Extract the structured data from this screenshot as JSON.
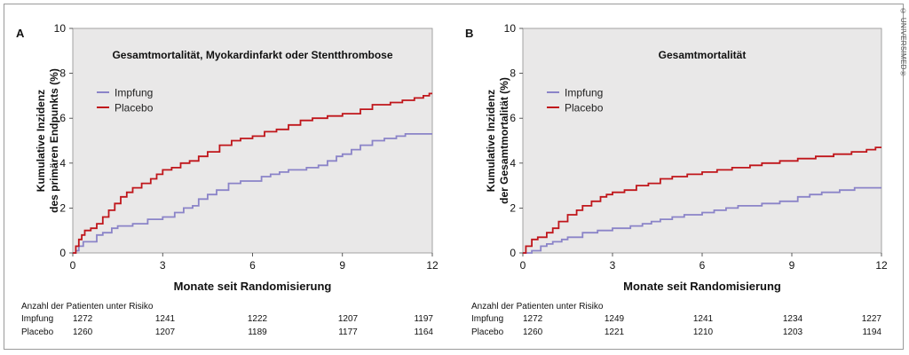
{
  "copyright": "© UNIVERSIMED®",
  "colors": {
    "impfung": "#8b84c8",
    "placebo": "#c0161b",
    "plot_bg": "#e9e8e8"
  },
  "chart_data": [
    {
      "type": "line",
      "panel": "A",
      "title": "Gesamtmortalität, Myokardinfarkt oder Stentthrombose",
      "xlabel": "Monate seit Randomisierung",
      "ylabel": [
        "Kumulative Inzidenz",
        "des primären Endpunkts (%)"
      ],
      "xlim": [
        0,
        12
      ],
      "ylim": [
        0,
        10
      ],
      "xticks": [
        0,
        3,
        6,
        9,
        12
      ],
      "yticks": [
        0,
        2,
        4,
        6,
        8,
        10
      ],
      "grid": false,
      "legend_position": "upper-left",
      "series": [
        {
          "name": "Impfung",
          "color": "#8b84c8",
          "points": [
            [
              0,
              0
            ],
            [
              0.1,
              0.1
            ],
            [
              0.2,
              0.3
            ],
            [
              0.35,
              0.5
            ],
            [
              0.8,
              0.8
            ],
            [
              1.0,
              0.9
            ],
            [
              1.3,
              1.1
            ],
            [
              1.5,
              1.2
            ],
            [
              2.0,
              1.3
            ],
            [
              2.5,
              1.5
            ],
            [
              3.0,
              1.6
            ],
            [
              3.4,
              1.8
            ],
            [
              3.7,
              2.0
            ],
            [
              4.0,
              2.1
            ],
            [
              4.2,
              2.4
            ],
            [
              4.5,
              2.6
            ],
            [
              4.8,
              2.8
            ],
            [
              5.2,
              3.1
            ],
            [
              5.6,
              3.2
            ],
            [
              6.0,
              3.2
            ],
            [
              6.3,
              3.4
            ],
            [
              6.6,
              3.5
            ],
            [
              6.9,
              3.6
            ],
            [
              7.2,
              3.7
            ],
            [
              7.8,
              3.8
            ],
            [
              8.2,
              3.9
            ],
            [
              8.5,
              4.1
            ],
            [
              8.8,
              4.3
            ],
            [
              9.0,
              4.4
            ],
            [
              9.3,
              4.6
            ],
            [
              9.6,
              4.8
            ],
            [
              10.0,
              5.0
            ],
            [
              10.4,
              5.1
            ],
            [
              10.8,
              5.2
            ],
            [
              11.1,
              5.3
            ],
            [
              12.0,
              5.3
            ]
          ]
        },
        {
          "name": "Placebo",
          "color": "#c0161b",
          "points": [
            [
              0,
              0
            ],
            [
              0.1,
              0.3
            ],
            [
              0.2,
              0.6
            ],
            [
              0.3,
              0.8
            ],
            [
              0.4,
              1.0
            ],
            [
              0.6,
              1.1
            ],
            [
              0.8,
              1.3
            ],
            [
              1.0,
              1.6
            ],
            [
              1.2,
              1.9
            ],
            [
              1.4,
              2.2
            ],
            [
              1.6,
              2.5
            ],
            [
              1.8,
              2.7
            ],
            [
              2.0,
              2.9
            ],
            [
              2.3,
              3.1
            ],
            [
              2.6,
              3.3
            ],
            [
              2.8,
              3.5
            ],
            [
              3.0,
              3.7
            ],
            [
              3.3,
              3.8
            ],
            [
              3.6,
              4.0
            ],
            [
              3.9,
              4.1
            ],
            [
              4.2,
              4.3
            ],
            [
              4.5,
              4.5
            ],
            [
              4.9,
              4.8
            ],
            [
              5.3,
              5.0
            ],
            [
              5.6,
              5.1
            ],
            [
              6.0,
              5.2
            ],
            [
              6.4,
              5.4
            ],
            [
              6.8,
              5.5
            ],
            [
              7.2,
              5.7
            ],
            [
              7.6,
              5.9
            ],
            [
              8.0,
              6.0
            ],
            [
              8.5,
              6.1
            ],
            [
              9.0,
              6.2
            ],
            [
              9.6,
              6.4
            ],
            [
              10.0,
              6.6
            ],
            [
              10.6,
              6.7
            ],
            [
              11.0,
              6.8
            ],
            [
              11.4,
              6.9
            ],
            [
              11.7,
              7.0
            ],
            [
              11.9,
              7.1
            ],
            [
              12.0,
              7.1
            ]
          ]
        }
      ],
      "risk_table": {
        "header": "Anzahl der Patienten unter Risiko",
        "rows": [
          {
            "label": "Impfung",
            "values": [
              "1272",
              "1241",
              "1222",
              "1207",
              "1197"
            ]
          },
          {
            "label": "Placebo",
            "values": [
              "1260",
              "1207",
              "1189",
              "1177",
              "1164"
            ]
          }
        ]
      }
    },
    {
      "type": "line",
      "panel": "B",
      "title": "Gesamtmortalität",
      "xlabel": "Monate seit Randomisierung",
      "ylabel": [
        "Kumulative Inzidenz",
        "der Gesamtmortalität (%)"
      ],
      "xlim": [
        0,
        12
      ],
      "ylim": [
        0,
        10
      ],
      "xticks": [
        0,
        3,
        6,
        9,
        12
      ],
      "yticks": [
        0,
        2,
        4,
        6,
        8,
        10
      ],
      "grid": false,
      "legend_position": "upper-left",
      "series": [
        {
          "name": "Impfung",
          "color": "#8b84c8",
          "points": [
            [
              0,
              0
            ],
            [
              0.3,
              0.1
            ],
            [
              0.6,
              0.3
            ],
            [
              0.8,
              0.4
            ],
            [
              1.0,
              0.5
            ],
            [
              1.3,
              0.6
            ],
            [
              1.5,
              0.7
            ],
            [
              2.0,
              0.9
            ],
            [
              2.5,
              1.0
            ],
            [
              3.0,
              1.1
            ],
            [
              3.6,
              1.2
            ],
            [
              4.0,
              1.3
            ],
            [
              4.3,
              1.4
            ],
            [
              4.6,
              1.5
            ],
            [
              5.0,
              1.6
            ],
            [
              5.4,
              1.7
            ],
            [
              6.0,
              1.8
            ],
            [
              6.4,
              1.9
            ],
            [
              6.8,
              2.0
            ],
            [
              7.2,
              2.1
            ],
            [
              8.0,
              2.2
            ],
            [
              8.6,
              2.3
            ],
            [
              9.2,
              2.5
            ],
            [
              9.6,
              2.6
            ],
            [
              10.0,
              2.7
            ],
            [
              10.6,
              2.8
            ],
            [
              11.1,
              2.9
            ],
            [
              12.0,
              2.9
            ]
          ]
        },
        {
          "name": "Placebo",
          "color": "#c0161b",
          "points": [
            [
              0,
              0
            ],
            [
              0.1,
              0.3
            ],
            [
              0.3,
              0.6
            ],
            [
              0.5,
              0.7
            ],
            [
              0.8,
              0.9
            ],
            [
              1.0,
              1.1
            ],
            [
              1.2,
              1.4
            ],
            [
              1.5,
              1.7
            ],
            [
              1.8,
              1.9
            ],
            [
              2.0,
              2.1
            ],
            [
              2.3,
              2.3
            ],
            [
              2.6,
              2.5
            ],
            [
              2.8,
              2.6
            ],
            [
              3.0,
              2.7
            ],
            [
              3.4,
              2.8
            ],
            [
              3.8,
              3.0
            ],
            [
              4.2,
              3.1
            ],
            [
              4.6,
              3.3
            ],
            [
              5.0,
              3.4
            ],
            [
              5.5,
              3.5
            ],
            [
              6.0,
              3.6
            ],
            [
              6.5,
              3.7
            ],
            [
              7.0,
              3.8
            ],
            [
              7.6,
              3.9
            ],
            [
              8.0,
              4.0
            ],
            [
              8.6,
              4.1
            ],
            [
              9.2,
              4.2
            ],
            [
              9.8,
              4.3
            ],
            [
              10.4,
              4.4
            ],
            [
              11.0,
              4.5
            ],
            [
              11.5,
              4.6
            ],
            [
              11.8,
              4.7
            ],
            [
              12.0,
              4.7
            ]
          ]
        }
      ],
      "risk_table": {
        "header": "Anzahl der Patienten unter Risiko",
        "rows": [
          {
            "label": "Impfung",
            "values": [
              "1272",
              "1249",
              "1241",
              "1234",
              "1227"
            ]
          },
          {
            "label": "Placebo",
            "values": [
              "1260",
              "1221",
              "1210",
              "1203",
              "1194"
            ]
          }
        ]
      }
    }
  ]
}
